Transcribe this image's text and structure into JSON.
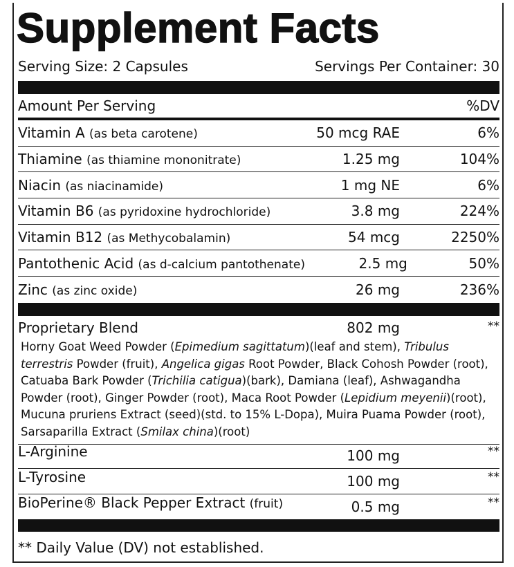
{
  "header": {
    "title": "Supplement Facts",
    "serving_size": "Serving Size: 2 Capsules",
    "servings_per_container": "Servings Per Container: 30"
  },
  "columns": {
    "amount": "Amount Per Serving",
    "dv": "%DV"
  },
  "nutrients": [
    {
      "name": "Vitamin A",
      "desc": "(as beta carotene)",
      "amount": "50 mcg RAE",
      "dv": "6%"
    },
    {
      "name": "Thiamine",
      "desc": "(as thiamine mononitrate)",
      "amount": "1.25 mg",
      "dv": "104%"
    },
    {
      "name": "Niacin",
      "desc": "(as niacinamide)",
      "amount": "1 mg NE",
      "dv": "6%"
    },
    {
      "name": "Vitamin B6",
      "desc": "(as pyridoxine hydrochloride)",
      "amount": "3.8 mg",
      "dv": "224%"
    },
    {
      "name": "Vitamin B12",
      "desc": "(as Methycobalamin)",
      "amount": "54 mcg",
      "dv": "2250%"
    },
    {
      "name": "Pantothenic Acid",
      "desc": "(as d-calcium pantothenate)",
      "amount": "2.5 mg",
      "dv": "50%"
    },
    {
      "name": "Zinc",
      "desc": "(as zinc oxide)",
      "amount": "26 mg",
      "dv": "236%"
    }
  ],
  "blend": {
    "name": "Proprietary Blend",
    "amount": "802 mg",
    "dv": "**",
    "ingredients": [
      "Horny Goat Weed Powder (",
      {
        "text": "Epimedium sagittatum",
        "italic": true
      },
      ")(leaf and stem), ",
      {
        "text": "Tribulus terrestris",
        "italic": true
      },
      " Powder (fruit), ",
      {
        "text": "Angelica gigas",
        "italic": true
      },
      " Root Powder, Black Cohosh Powder (root), Catuaba Bark Powder (",
      {
        "text": "Trichilia catigua",
        "italic": true
      },
      ")(bark), Damiana (leaf), Ashwagandha Powder (root), Ginger Powder (root), Maca Root Powder (",
      {
        "text": "Lepidium meyenii",
        "italic": true
      },
      ")(root), Mucuna pruriens Extract (seed)(std. to 15% L-Dopa), Muira Puama Powder (root), Sarsaparilla Extract (",
      {
        "text": "Smilax china",
        "italic": true
      },
      ")(root)"
    ]
  },
  "others": [
    {
      "name": "L-Arginine",
      "amount": "100 mg",
      "dv": "**"
    },
    {
      "name": "L-Tyrosine",
      "amount": "100 mg",
      "dv": "**"
    },
    {
      "name": "BioPerine® Black Pepper Extract",
      "desc": "(fruit)",
      "amount": "0.5 mg",
      "dv": "**"
    }
  ],
  "footnote": "** Daily Value (DV) not established."
}
